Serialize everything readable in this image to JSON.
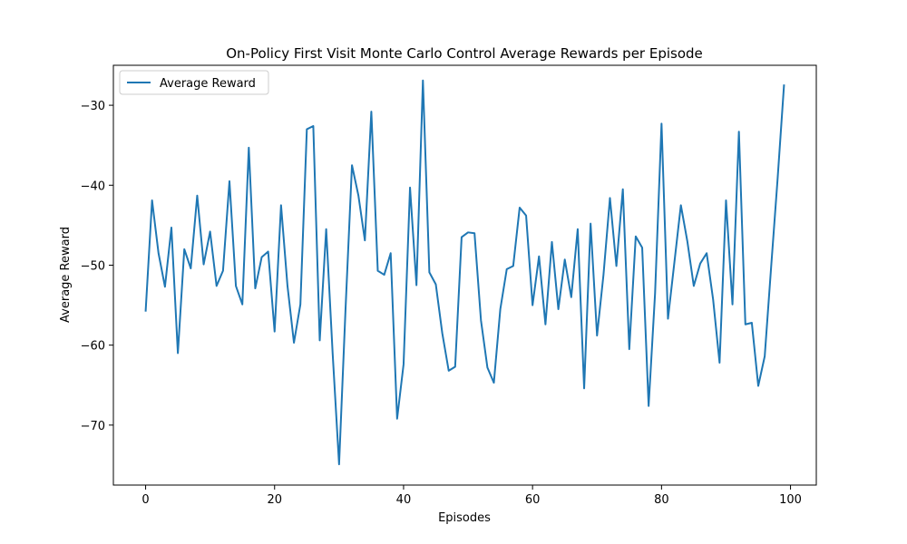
{
  "chart_data": {
    "type": "line",
    "title": "On-Policy First Visit Monte Carlo Control Average Rewards per Episode",
    "xlabel": "Episodes",
    "ylabel": "Average Reward",
    "xlim": [
      -5,
      104
    ],
    "ylim": [
      -77.5,
      -25.0
    ],
    "xticks": [
      0,
      20,
      40,
      60,
      80,
      100
    ],
    "yticks": [
      -70,
      -60,
      -50,
      -40,
      -30
    ],
    "grid": false,
    "legend": {
      "position": "top-left",
      "entries": [
        "Average Reward"
      ]
    },
    "series": [
      {
        "name": "Average Reward",
        "color": "#1f77b4",
        "x": [
          0,
          1,
          2,
          3,
          4,
          5,
          6,
          7,
          8,
          9,
          10,
          11,
          12,
          13,
          14,
          15,
          16,
          17,
          18,
          19,
          20,
          21,
          22,
          23,
          24,
          25,
          26,
          27,
          28,
          29,
          30,
          31,
          32,
          33,
          34,
          35,
          36,
          37,
          38,
          39,
          40,
          41,
          42,
          43,
          44,
          45,
          46,
          47,
          48,
          49,
          50,
          51,
          52,
          53,
          54,
          55,
          56,
          57,
          58,
          59,
          60,
          61,
          62,
          63,
          64,
          65,
          66,
          67,
          68,
          69,
          70,
          71,
          72,
          73,
          74,
          75,
          76,
          77,
          78,
          79,
          80,
          81,
          82,
          83,
          84,
          85,
          86,
          87,
          88,
          89,
          90,
          91,
          92,
          93,
          94,
          95,
          96,
          97,
          98,
          99
        ],
        "y": [
          -55.8,
          -41.9,
          -48.5,
          -52.7,
          -45.3,
          -61.0,
          -48.0,
          -50.4,
          -41.3,
          -49.9,
          -45.8,
          -52.6,
          -50.7,
          -39.5,
          -52.6,
          -54.9,
          -35.3,
          -52.9,
          -49.0,
          -48.3,
          -58.3,
          -42.5,
          -52.6,
          -59.7,
          -54.9,
          -33.0,
          -32.6,
          -59.4,
          -45.5,
          -61.0,
          -74.9,
          -55.5,
          -37.5,
          -41.3,
          -46.9,
          -30.8,
          -50.7,
          -51.2,
          -48.5,
          -69.2,
          -62.4,
          -40.3,
          -52.5,
          -26.9,
          -50.9,
          -52.4,
          -58.5,
          -63.2,
          -62.7,
          -46.5,
          -45.9,
          -46.0,
          -56.9,
          -62.8,
          -64.7,
          -55.5,
          -50.5,
          -50.1,
          -42.8,
          -43.8,
          -55.0,
          -48.9,
          -57.4,
          -47.1,
          -55.5,
          -49.3,
          -54.0,
          -45.5,
          -65.4,
          -44.8,
          -58.8,
          -51.2,
          -41.6,
          -50.1,
          -40.5,
          -60.5,
          -46.4,
          -47.8,
          -67.6,
          -53.5,
          -32.3,
          -56.7,
          -49.6,
          -42.5,
          -47.0,
          -52.6,
          -49.8,
          -48.5,
          -54.3,
          -62.2,
          -41.9,
          -54.9,
          -33.3,
          -57.4,
          -57.2,
          -65.1,
          -61.4,
          -50.2,
          -39.2,
          -27.4
        ]
      }
    ]
  }
}
